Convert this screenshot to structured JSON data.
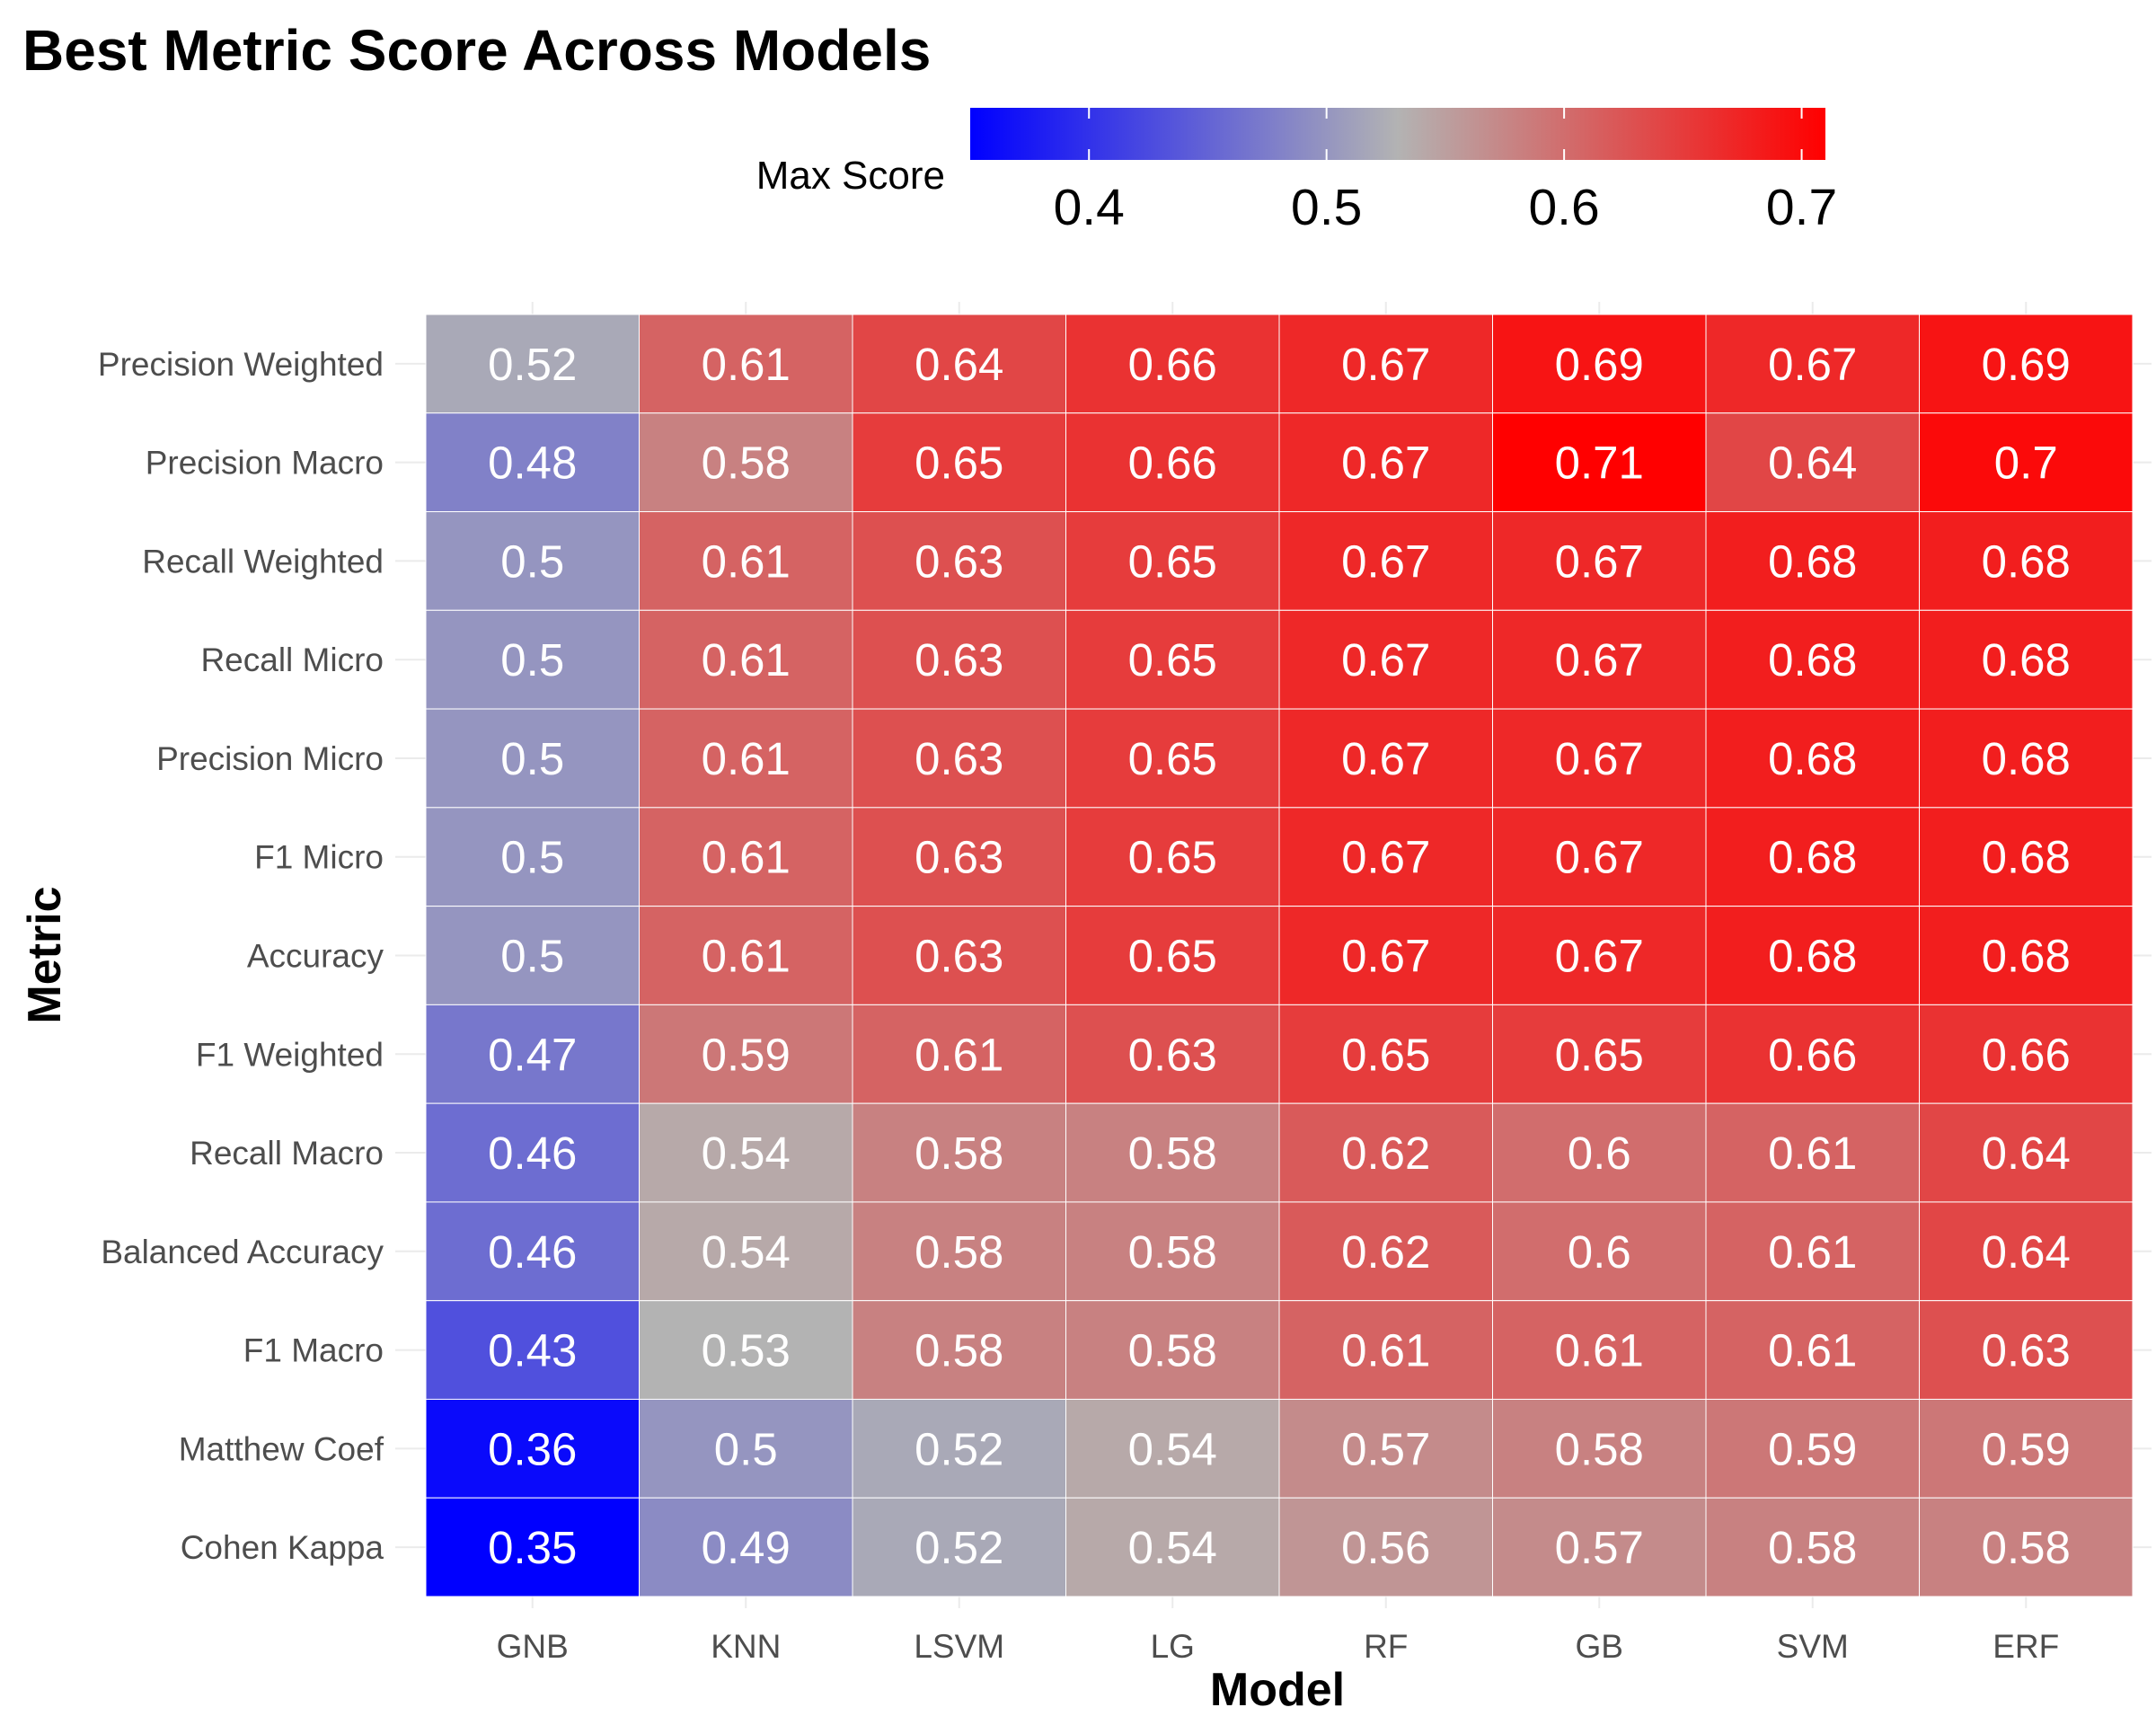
{
  "chart_data": {
    "type": "heatmap",
    "title": "Best Metric Score Across Models",
    "xlabel": "Model",
    "ylabel": "Metric",
    "x_categories": [
      "GNB",
      "KNN",
      "LSVM",
      "LG",
      "RF",
      "GB",
      "SVM",
      "ERF"
    ],
    "y_categories": [
      "Precision Weighted",
      "Precision Macro",
      "Recall Weighted",
      "Recall Micro",
      "Precision Micro",
      "F1 Micro",
      "Accuracy",
      "F1 Weighted",
      "Recall Macro",
      "Balanced Accuracy",
      "F1 Macro",
      "Matthew Coef",
      "Cohen Kappa"
    ],
    "values": [
      [
        0.52,
        0.61,
        0.64,
        0.66,
        0.67,
        0.69,
        0.67,
        0.69
      ],
      [
        0.48,
        0.58,
        0.65,
        0.66,
        0.67,
        0.71,
        0.64,
        0.7
      ],
      [
        0.5,
        0.61,
        0.63,
        0.65,
        0.67,
        0.67,
        0.68,
        0.68
      ],
      [
        0.5,
        0.61,
        0.63,
        0.65,
        0.67,
        0.67,
        0.68,
        0.68
      ],
      [
        0.5,
        0.61,
        0.63,
        0.65,
        0.67,
        0.67,
        0.68,
        0.68
      ],
      [
        0.5,
        0.61,
        0.63,
        0.65,
        0.67,
        0.67,
        0.68,
        0.68
      ],
      [
        0.5,
        0.61,
        0.63,
        0.65,
        0.67,
        0.67,
        0.68,
        0.68
      ],
      [
        0.47,
        0.59,
        0.61,
        0.63,
        0.65,
        0.65,
        0.66,
        0.66
      ],
      [
        0.46,
        0.54,
        0.58,
        0.58,
        0.62,
        0.6,
        0.61,
        0.64
      ],
      [
        0.46,
        0.54,
        0.58,
        0.58,
        0.62,
        0.6,
        0.61,
        0.64
      ],
      [
        0.43,
        0.53,
        0.58,
        0.58,
        0.61,
        0.61,
        0.61,
        0.63
      ],
      [
        0.36,
        0.5,
        0.52,
        0.54,
        0.57,
        0.58,
        0.59,
        0.59
      ],
      [
        0.35,
        0.49,
        0.52,
        0.54,
        0.56,
        0.57,
        0.58,
        0.58
      ]
    ],
    "legend": {
      "title": "Max Score",
      "position": "top",
      "range": [
        0.35,
        0.71
      ],
      "ticks": [
        0.4,
        0.5,
        0.6,
        0.7
      ],
      "tick_labels": [
        "0.4",
        "0.5",
        "0.6",
        "0.7"
      ],
      "low_color": "#0000ff",
      "mid_color": "#b3b3b3",
      "high_color": "#ff0000",
      "midpoint": 0.53
    },
    "grid": true
  }
}
